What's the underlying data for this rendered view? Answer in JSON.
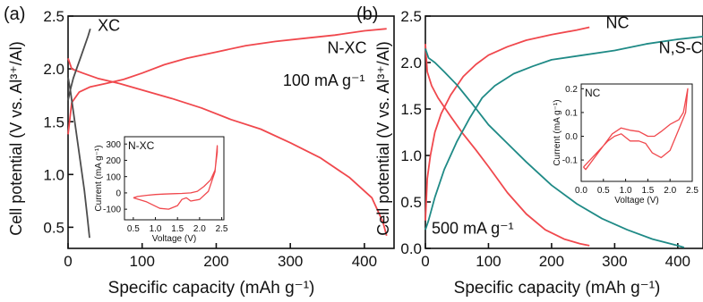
{
  "colors": {
    "red": "#f0484d",
    "teal": "#1f8a86",
    "grey": "#4d4d4d",
    "axis": "#111111"
  },
  "chart_data": [
    {
      "type": "line",
      "panel_label": "(a)",
      "xlabel": "Specific capacity (mAh g⁻¹)",
      "ylabel": "Cell potential (V vs. Al³⁺/Al)",
      "xlim": [
        0,
        440
      ],
      "ylim": [
        0.3,
        2.5
      ],
      "xticks": [
        0,
        100,
        200,
        300,
        400
      ],
      "xtick_labels": [
        "0",
        "100",
        "200",
        "300",
        "400"
      ],
      "yticks": [
        0.5,
        1.0,
        1.5,
        2.0,
        2.5
      ],
      "ytick_labels": [
        "0.5",
        "1.0",
        "1.5",
        "2.0",
        "2.5"
      ],
      "annotations": [
        {
          "text": "N-XC",
          "color": "red",
          "at": [
            350,
            2.15
          ]
        },
        {
          "text": "XC",
          "color": "#111111",
          "at": [
            40,
            2.36
          ]
        },
        {
          "text": "100 mA g⁻¹",
          "color": "#111111",
          "at": [
            290,
            1.84
          ]
        }
      ],
      "series": [
        {
          "name": "N-XC",
          "color": "red",
          "role": "charge",
          "x": [
            0,
            5,
            15,
            30,
            50,
            75,
            100,
            130,
            160,
            200,
            240,
            280,
            320,
            360,
            400,
            430
          ],
          "y": [
            1.38,
            1.68,
            1.78,
            1.83,
            1.86,
            1.9,
            1.96,
            2.04,
            2.1,
            2.16,
            2.22,
            2.26,
            2.29,
            2.32,
            2.36,
            2.38
          ]
        },
        {
          "name": "N-XC",
          "color": "red",
          "role": "discharge",
          "x": [
            0,
            5,
            20,
            40,
            70,
            100,
            140,
            180,
            220,
            260,
            300,
            340,
            380,
            410,
            425,
            430
          ],
          "y": [
            2.1,
            2.0,
            1.96,
            1.91,
            1.86,
            1.8,
            1.72,
            1.63,
            1.52,
            1.43,
            1.3,
            1.16,
            0.97,
            0.78,
            0.55,
            0.42
          ]
        },
        {
          "name": "XC",
          "color": "grey",
          "role": "charge",
          "x": [
            0,
            3,
            7,
            12,
            17,
            22,
            27,
            30
          ],
          "y": [
            1.7,
            1.8,
            1.91,
            2.01,
            2.11,
            2.21,
            2.31,
            2.38
          ]
        },
        {
          "name": "XC",
          "color": "grey",
          "role": "discharge",
          "x": [
            0,
            3,
            6,
            10,
            14,
            18,
            22,
            26,
            29
          ],
          "y": [
            1.92,
            1.8,
            1.65,
            1.45,
            1.25,
            1.05,
            0.85,
            0.6,
            0.4
          ]
        }
      ],
      "inset": {
        "label": "N-XC",
        "label_color": "red",
        "xlabel": "Voltage (V)",
        "ylabel": "Current (mA g⁻¹)",
        "xlim": [
          0.3,
          2.55
        ],
        "ylim": [
          -165,
          345
        ],
        "xticks": [
          0.5,
          1.0,
          1.5,
          2.0,
          2.5
        ],
        "xtick_labels": [
          "0.5",
          "1.0",
          "1.5",
          "2.0",
          "2.5"
        ],
        "yticks": [
          -100,
          0,
          100,
          200,
          300
        ],
        "ytick_labels": [
          "-100",
          "0",
          "100",
          "200",
          "300"
        ],
        "series": [
          {
            "color": "red",
            "x": [
              0.5,
              0.8,
              1.1,
              1.3,
              1.5,
              1.6,
              1.7,
              1.8,
              2.0,
              2.2,
              2.35,
              2.4,
              2.4,
              2.35,
              2.25,
              2.1,
              1.95,
              1.8,
              1.6,
              1.4,
              1.2,
              1.0,
              0.8,
              0.6,
              0.5
            ],
            "y": [
              -30,
              -55,
              -95,
              -100,
              -78,
              -40,
              -30,
              -50,
              -40,
              10,
              130,
              290,
              250,
              140,
              80,
              40,
              10,
              0,
              -3,
              -5,
              -7,
              -10,
              -15,
              -22,
              -30
            ]
          }
        ]
      }
    },
    {
      "type": "line",
      "panel_label": "(b)",
      "xlabel": "Specific capacity (mAh g⁻¹)",
      "ylabel": "Cell potential (V vs. Al³⁺/Al)",
      "xlim": [
        0,
        440
      ],
      "ylim": [
        0,
        2.5
      ],
      "xticks": [
        0,
        100,
        200,
        300,
        400
      ],
      "xtick_labels": [
        "0",
        "100",
        "200",
        "300",
        "400"
      ],
      "yticks": [
        0,
        0.5,
        1.0,
        1.5,
        2.0,
        2.5
      ],
      "ytick_labels": [
        "0.0",
        "0.5",
        "1.0",
        "1.5",
        "2.0",
        "2.5"
      ],
      "annotations": [
        {
          "text": "NC",
          "color": "red",
          "at": [
            286,
            2.37
          ]
        },
        {
          "text": "N,S-C",
          "color": "teal",
          "at": [
            370,
            2.1
          ]
        },
        {
          "text": "500 mA g⁻¹",
          "color": "#111111",
          "at": [
            10,
            0.16
          ]
        }
      ],
      "series": [
        {
          "name": "NC",
          "color": "red",
          "role": "charge",
          "x": [
            0,
            3,
            8,
            15,
            25,
            40,
            60,
            80,
            100,
            130,
            160,
            200,
            240,
            260
          ],
          "y": [
            0.3,
            0.75,
            1.0,
            1.25,
            1.45,
            1.65,
            1.85,
            1.98,
            2.08,
            2.17,
            2.24,
            2.3,
            2.35,
            2.38
          ]
        },
        {
          "name": "NC",
          "color": "red",
          "role": "discharge",
          "x": [
            0,
            3,
            10,
            20,
            40,
            60,
            80,
            100,
            130,
            160,
            190,
            220,
            245,
            260
          ],
          "y": [
            2.2,
            1.9,
            1.75,
            1.62,
            1.42,
            1.23,
            1.06,
            0.88,
            0.6,
            0.37,
            0.2,
            0.1,
            0.05,
            0.03
          ]
        },
        {
          "name": "N,S-C",
          "color": "teal",
          "role": "charge",
          "x": [
            0,
            5,
            15,
            30,
            50,
            70,
            90,
            110,
            140,
            170,
            200,
            250,
            300,
            350,
            400,
            440
          ],
          "y": [
            0.2,
            0.3,
            0.55,
            0.85,
            1.15,
            1.4,
            1.62,
            1.75,
            1.88,
            1.96,
            2.03,
            2.08,
            2.13,
            2.2,
            2.25,
            2.28
          ]
        },
        {
          "name": "N,S-C",
          "color": "teal",
          "role": "discharge",
          "x": [
            0,
            5,
            15,
            30,
            50,
            75,
            100,
            130,
            160,
            200,
            240,
            280,
            320,
            360,
            400,
            410
          ],
          "y": [
            2.15,
            2.05,
            2.0,
            1.9,
            1.76,
            1.55,
            1.33,
            1.13,
            0.93,
            0.68,
            0.48,
            0.32,
            0.2,
            0.1,
            0.03,
            0.01
          ]
        }
      ],
      "inset": {
        "label": "NC",
        "label_color": "red",
        "xlabel": "Voltage (V)",
        "ylabel": "Current (mA g⁻¹)",
        "xlim": [
          0,
          2.5
        ],
        "ylim": [
          -0.19,
          0.22
        ],
        "xticks": [
          0,
          0.5,
          1.0,
          1.5,
          2.0,
          2.5
        ],
        "xtick_labels": [
          "0.0",
          "0.5",
          "1.0",
          "1.5",
          "2.0",
          "2.5"
        ],
        "yticks": [
          -0.1,
          0.0,
          0.1,
          0.2
        ],
        "ytick_labels": [
          "-0.1",
          "0.0",
          "0.1",
          "0.2"
        ],
        "series": [
          {
            "color": "red",
            "x": [
              0.05,
              0.2,
              0.4,
              0.6,
              0.75,
              0.9,
              1.1,
              1.3,
              1.45,
              1.6,
              1.8,
              2.0,
              2.2,
              2.35,
              2.4,
              2.4,
              2.3,
              2.2,
              2.0,
              1.8,
              1.65,
              1.5,
              1.3,
              1.1,
              0.9,
              0.7,
              0.5,
              0.3,
              0.1,
              0.05
            ],
            "y": [
              -0.13,
              -0.1,
              -0.06,
              -0.02,
              0.0,
              0.01,
              -0.02,
              -0.02,
              -0.03,
              -0.07,
              -0.09,
              -0.06,
              0.03,
              0.1,
              0.2,
              0.2,
              0.1,
              0.07,
              0.05,
              0.02,
              0.0,
              0.0,
              0.02,
              0.025,
              0.035,
              0.01,
              -0.04,
              -0.09,
              -0.14,
              -0.13
            ]
          }
        ]
      }
    }
  ]
}
